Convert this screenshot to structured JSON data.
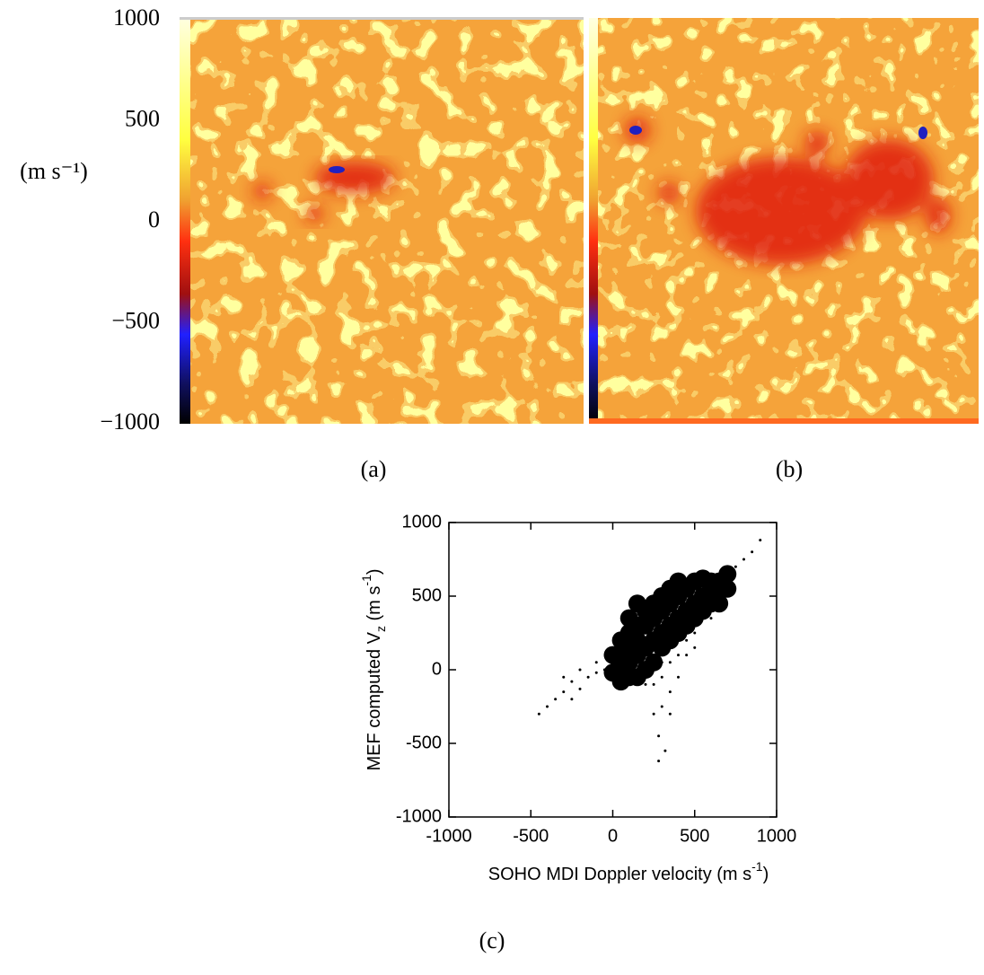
{
  "captions": [
    "(a)",
    "(b)",
    "(c)"
  ],
  "chart_data": [
    {
      "type": "colorbar",
      "ylabel": "(m s⁻¹)",
      "ylim": [
        -1000,
        1000
      ],
      "yticks": [
        1000,
        500,
        0,
        {
          "value": -500,
          "label": "−500"
        },
        {
          "value": -1000,
          "label": "−1000"
        }
      ]
    },
    {
      "type": "scatter",
      "xlabel": [
        "SOHO MDI Doppler velocity (m s",
        "-1",
        ")"
      ],
      "ylabel": [
        "MEF computed V",
        "z",
        " (m s",
        "-1",
        ")"
      ],
      "color": "#000000",
      "xlim": [
        -1000,
        1000
      ],
      "ylim": [
        -1000,
        1000
      ],
      "xticks": [
        -1000,
        -500,
        0,
        500,
        1000
      ],
      "yticks": [
        -1000,
        -500,
        0,
        500,
        1000
      ],
      "x": [
        100,
        150,
        200,
        250,
        300,
        350,
        400,
        450,
        500,
        550,
        600,
        650,
        200,
        250,
        300,
        350,
        400,
        450,
        300,
        350,
        400,
        450,
        500,
        250,
        200,
        300,
        150,
        100,
        50,
        0,
        50,
        100,
        150,
        200,
        250,
        300,
        350,
        400,
        500,
        550,
        600,
        650,
        700,
        600,
        550,
        500,
        450,
        400,
        350,
        300,
        250,
        200,
        150,
        100,
        50,
        350,
        300,
        250,
        350,
        0,
        -50,
        -100,
        -150,
        -200,
        -250,
        -300,
        -350,
        -400,
        -450,
        -100,
        750,
        800,
        850,
        900,
        700,
        650,
        150,
        100,
        50,
        600,
        500,
        400,
        450,
        280,
        320,
        280,
        -250,
        -300,
        -200
      ],
      "values": [
        50,
        100,
        150,
        200,
        250,
        300,
        350,
        400,
        450,
        500,
        550,
        600,
        300,
        350,
        400,
        450,
        500,
        550,
        150,
        200,
        250,
        300,
        350,
        50,
        0,
        50,
        200,
        150,
        0,
        -20,
        100,
        250,
        300,
        400,
        450,
        500,
        550,
        600,
        600,
        620,
        600,
        550,
        650,
        450,
        400,
        250,
        200,
        100,
        50,
        -50,
        -100,
        -100,
        -50,
        -50,
        -80,
        -150,
        -250,
        -300,
        -300,
        100,
        0,
        -20,
        -50,
        0,
        -80,
        -150,
        -200,
        -250,
        -300,
        50,
        700,
        750,
        800,
        880,
        550,
        450,
        450,
        350,
        200,
        350,
        150,
        -50,
        100,
        -450,
        -550,
        -620,
        -200,
        -50,
        -130
      ]
    }
  ]
}
